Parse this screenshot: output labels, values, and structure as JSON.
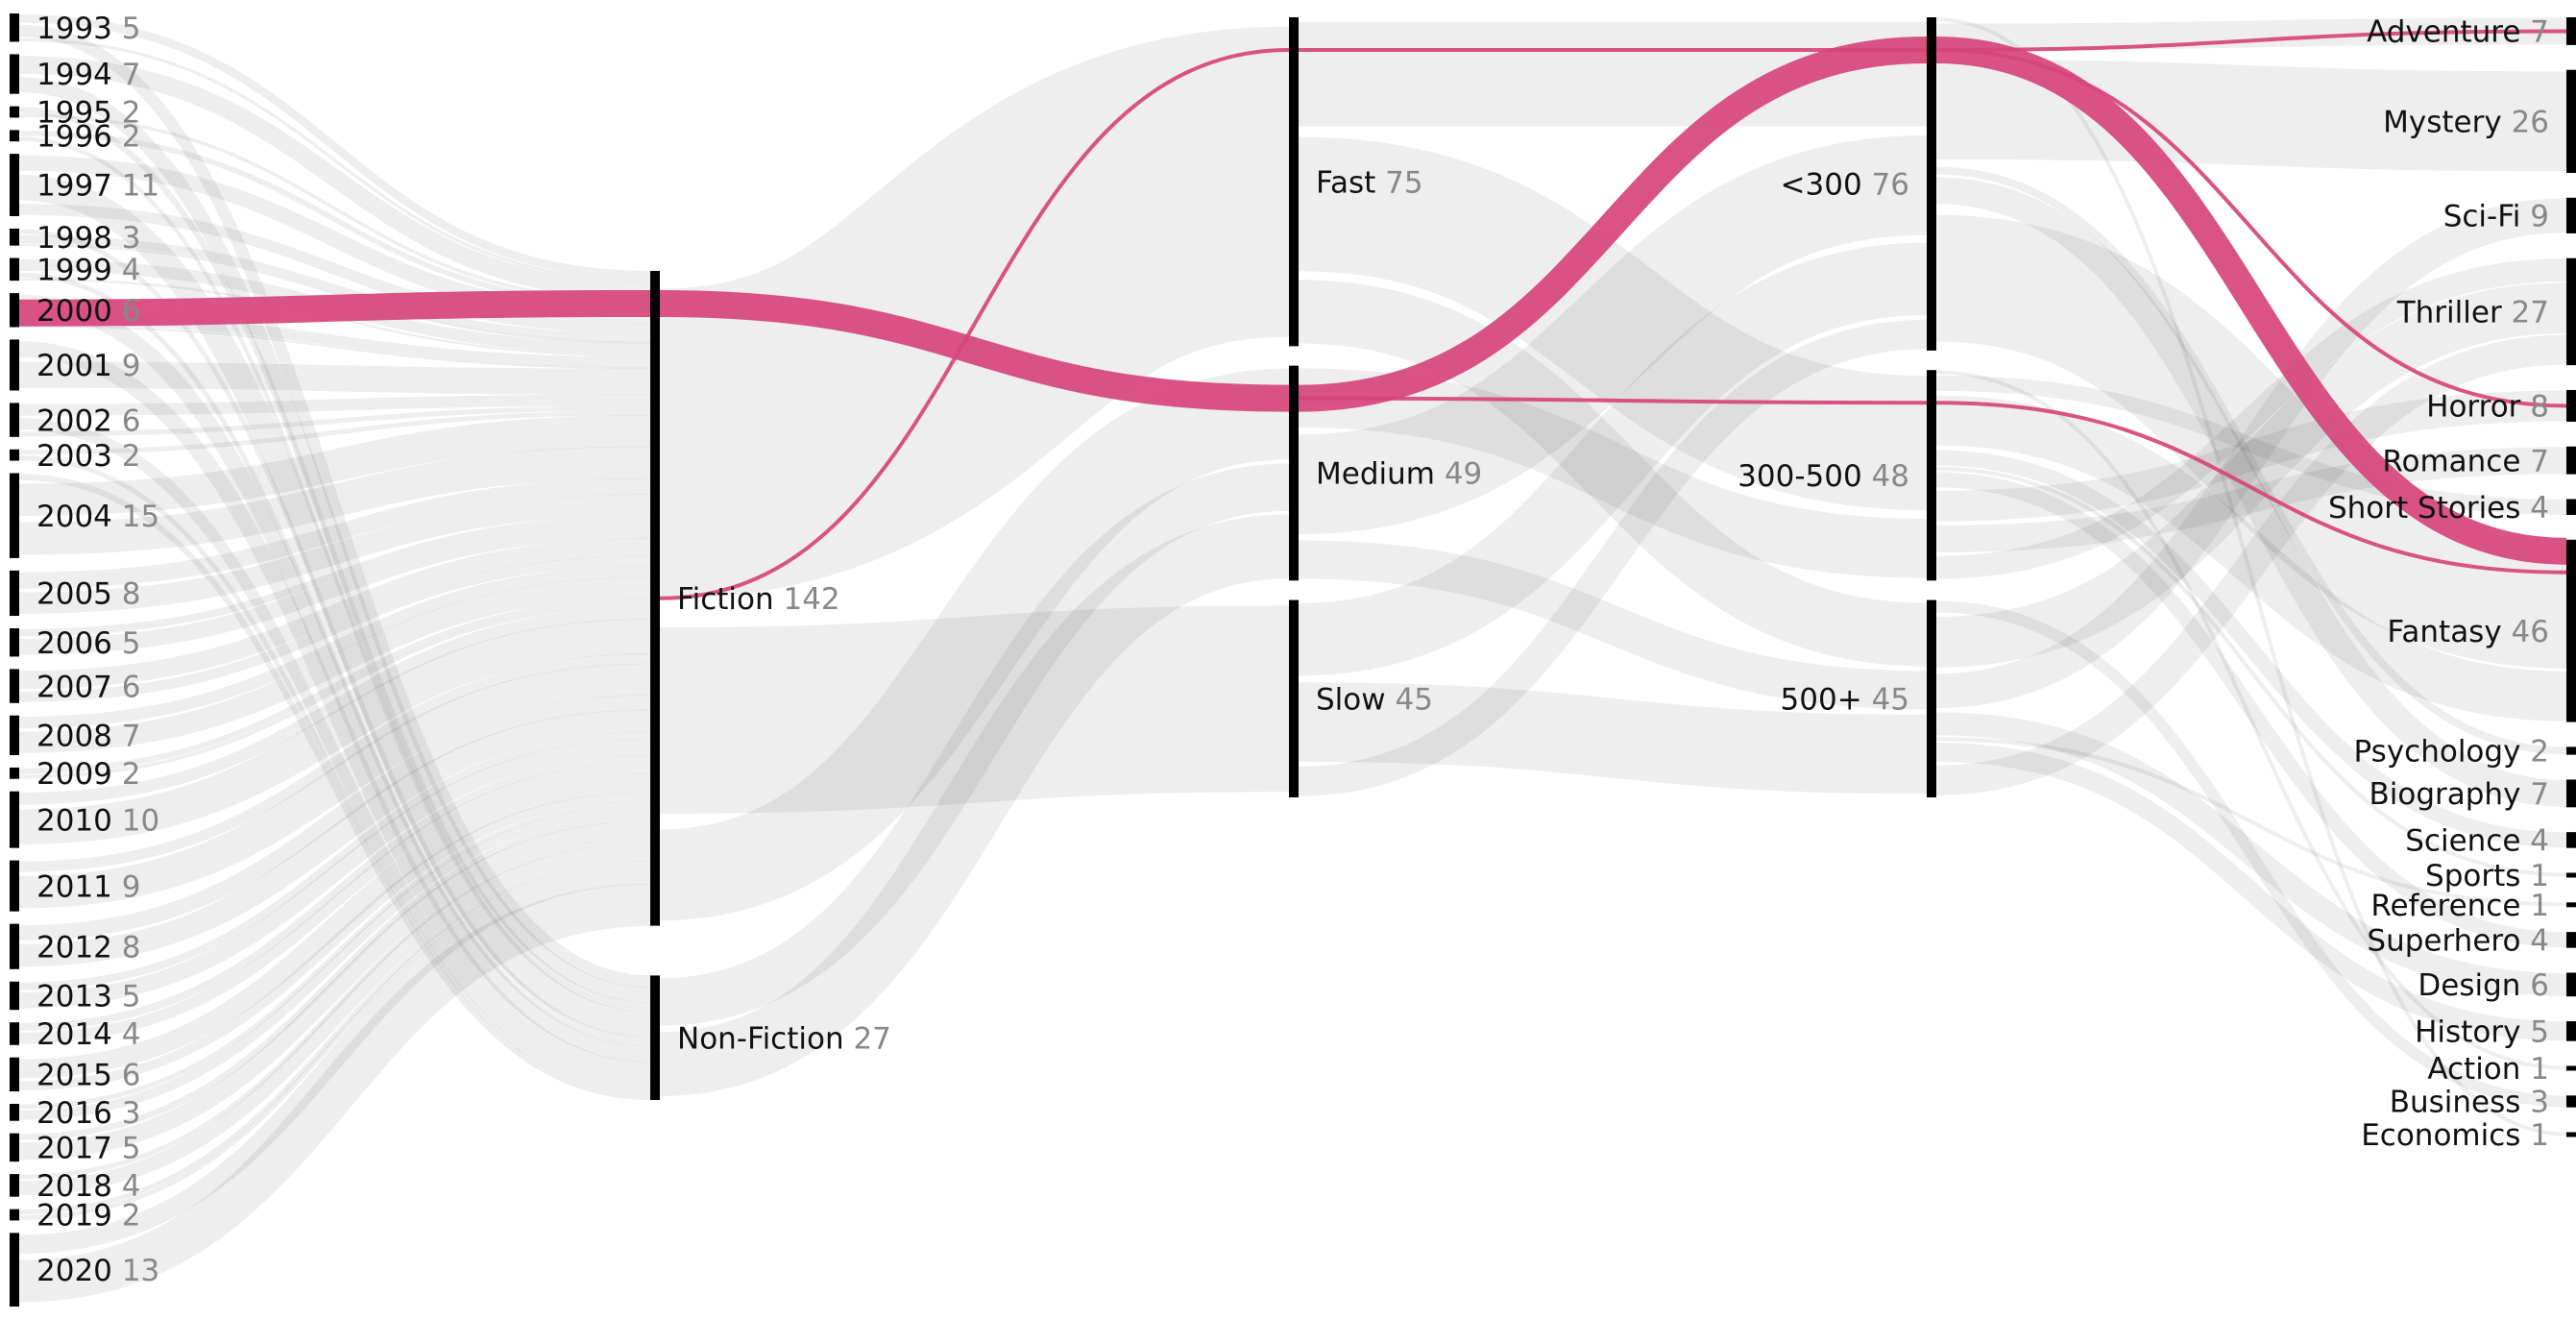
{
  "diagram": {
    "type": "sankey",
    "highlight_color": "#d6457a",
    "link_color": "#000000",
    "node_color": "#000000",
    "highlighted_path": [
      "2000",
      "Fiction",
      "Medium",
      "<300",
      "Fantasy"
    ],
    "columns": [
      {
        "id": "year",
        "nodes": [
          {
            "name": "1993",
            "count": 5
          },
          {
            "name": "1994",
            "count": 7
          },
          {
            "name": "1995",
            "count": 2
          },
          {
            "name": "1996",
            "count": 2
          },
          {
            "name": "1997",
            "count": 11
          },
          {
            "name": "1998",
            "count": 3
          },
          {
            "name": "1999",
            "count": 4
          },
          {
            "name": "2000",
            "count": 6
          },
          {
            "name": "2001",
            "count": 9
          },
          {
            "name": "2002",
            "count": 6
          },
          {
            "name": "2003",
            "count": 2
          },
          {
            "name": "2004",
            "count": 15
          },
          {
            "name": "2005",
            "count": 8
          },
          {
            "name": "2006",
            "count": 5
          },
          {
            "name": "2007",
            "count": 6
          },
          {
            "name": "2008",
            "count": 7
          },
          {
            "name": "2009",
            "count": 2
          },
          {
            "name": "2010",
            "count": 10
          },
          {
            "name": "2011",
            "count": 9
          },
          {
            "name": "2012",
            "count": 8
          },
          {
            "name": "2013",
            "count": 5
          },
          {
            "name": "2014",
            "count": 4
          },
          {
            "name": "2015",
            "count": 6
          },
          {
            "name": "2016",
            "count": 3
          },
          {
            "name": "2017",
            "count": 5
          },
          {
            "name": "2018",
            "count": 4
          },
          {
            "name": "2019",
            "count": 2
          },
          {
            "name": "2020",
            "count": 13
          }
        ]
      },
      {
        "id": "type",
        "nodes": [
          {
            "name": "Fiction",
            "count": 142
          },
          {
            "name": "Non-Fiction",
            "count": 27
          }
        ]
      },
      {
        "id": "pace",
        "nodes": [
          {
            "name": "Fast",
            "count": 75
          },
          {
            "name": "Medium",
            "count": 49
          },
          {
            "name": "Slow",
            "count": 45
          }
        ]
      },
      {
        "id": "length",
        "nodes": [
          {
            "name": "<300",
            "count": 76
          },
          {
            "name": "300-500",
            "count": 48
          },
          {
            "name": "500+",
            "count": 45
          }
        ]
      },
      {
        "id": "genre",
        "nodes": [
          {
            "name": "Adventure",
            "count": 7
          },
          {
            "name": "Mystery",
            "count": 26
          },
          {
            "name": "Sci-Fi",
            "count": 9
          },
          {
            "name": "Thriller",
            "count": 27
          },
          {
            "name": "Horror",
            "count": 8
          },
          {
            "name": "Romance",
            "count": 7
          },
          {
            "name": "Short Stories",
            "count": 4
          },
          {
            "name": "Fantasy",
            "count": 46
          },
          {
            "name": "Psychology",
            "count": 2
          },
          {
            "name": "Biography",
            "count": 7
          },
          {
            "name": "Science",
            "count": 4
          },
          {
            "name": "Sports",
            "count": 1
          },
          {
            "name": "Reference",
            "count": 1
          },
          {
            "name": "Superhero",
            "count": 4
          },
          {
            "name": "Design",
            "count": 6
          },
          {
            "name": "History",
            "count": 5
          },
          {
            "name": "Action",
            "count": 1
          },
          {
            "name": "Business",
            "count": 3
          },
          {
            "name": "Economics",
            "count": 1
          }
        ]
      }
    ]
  }
}
